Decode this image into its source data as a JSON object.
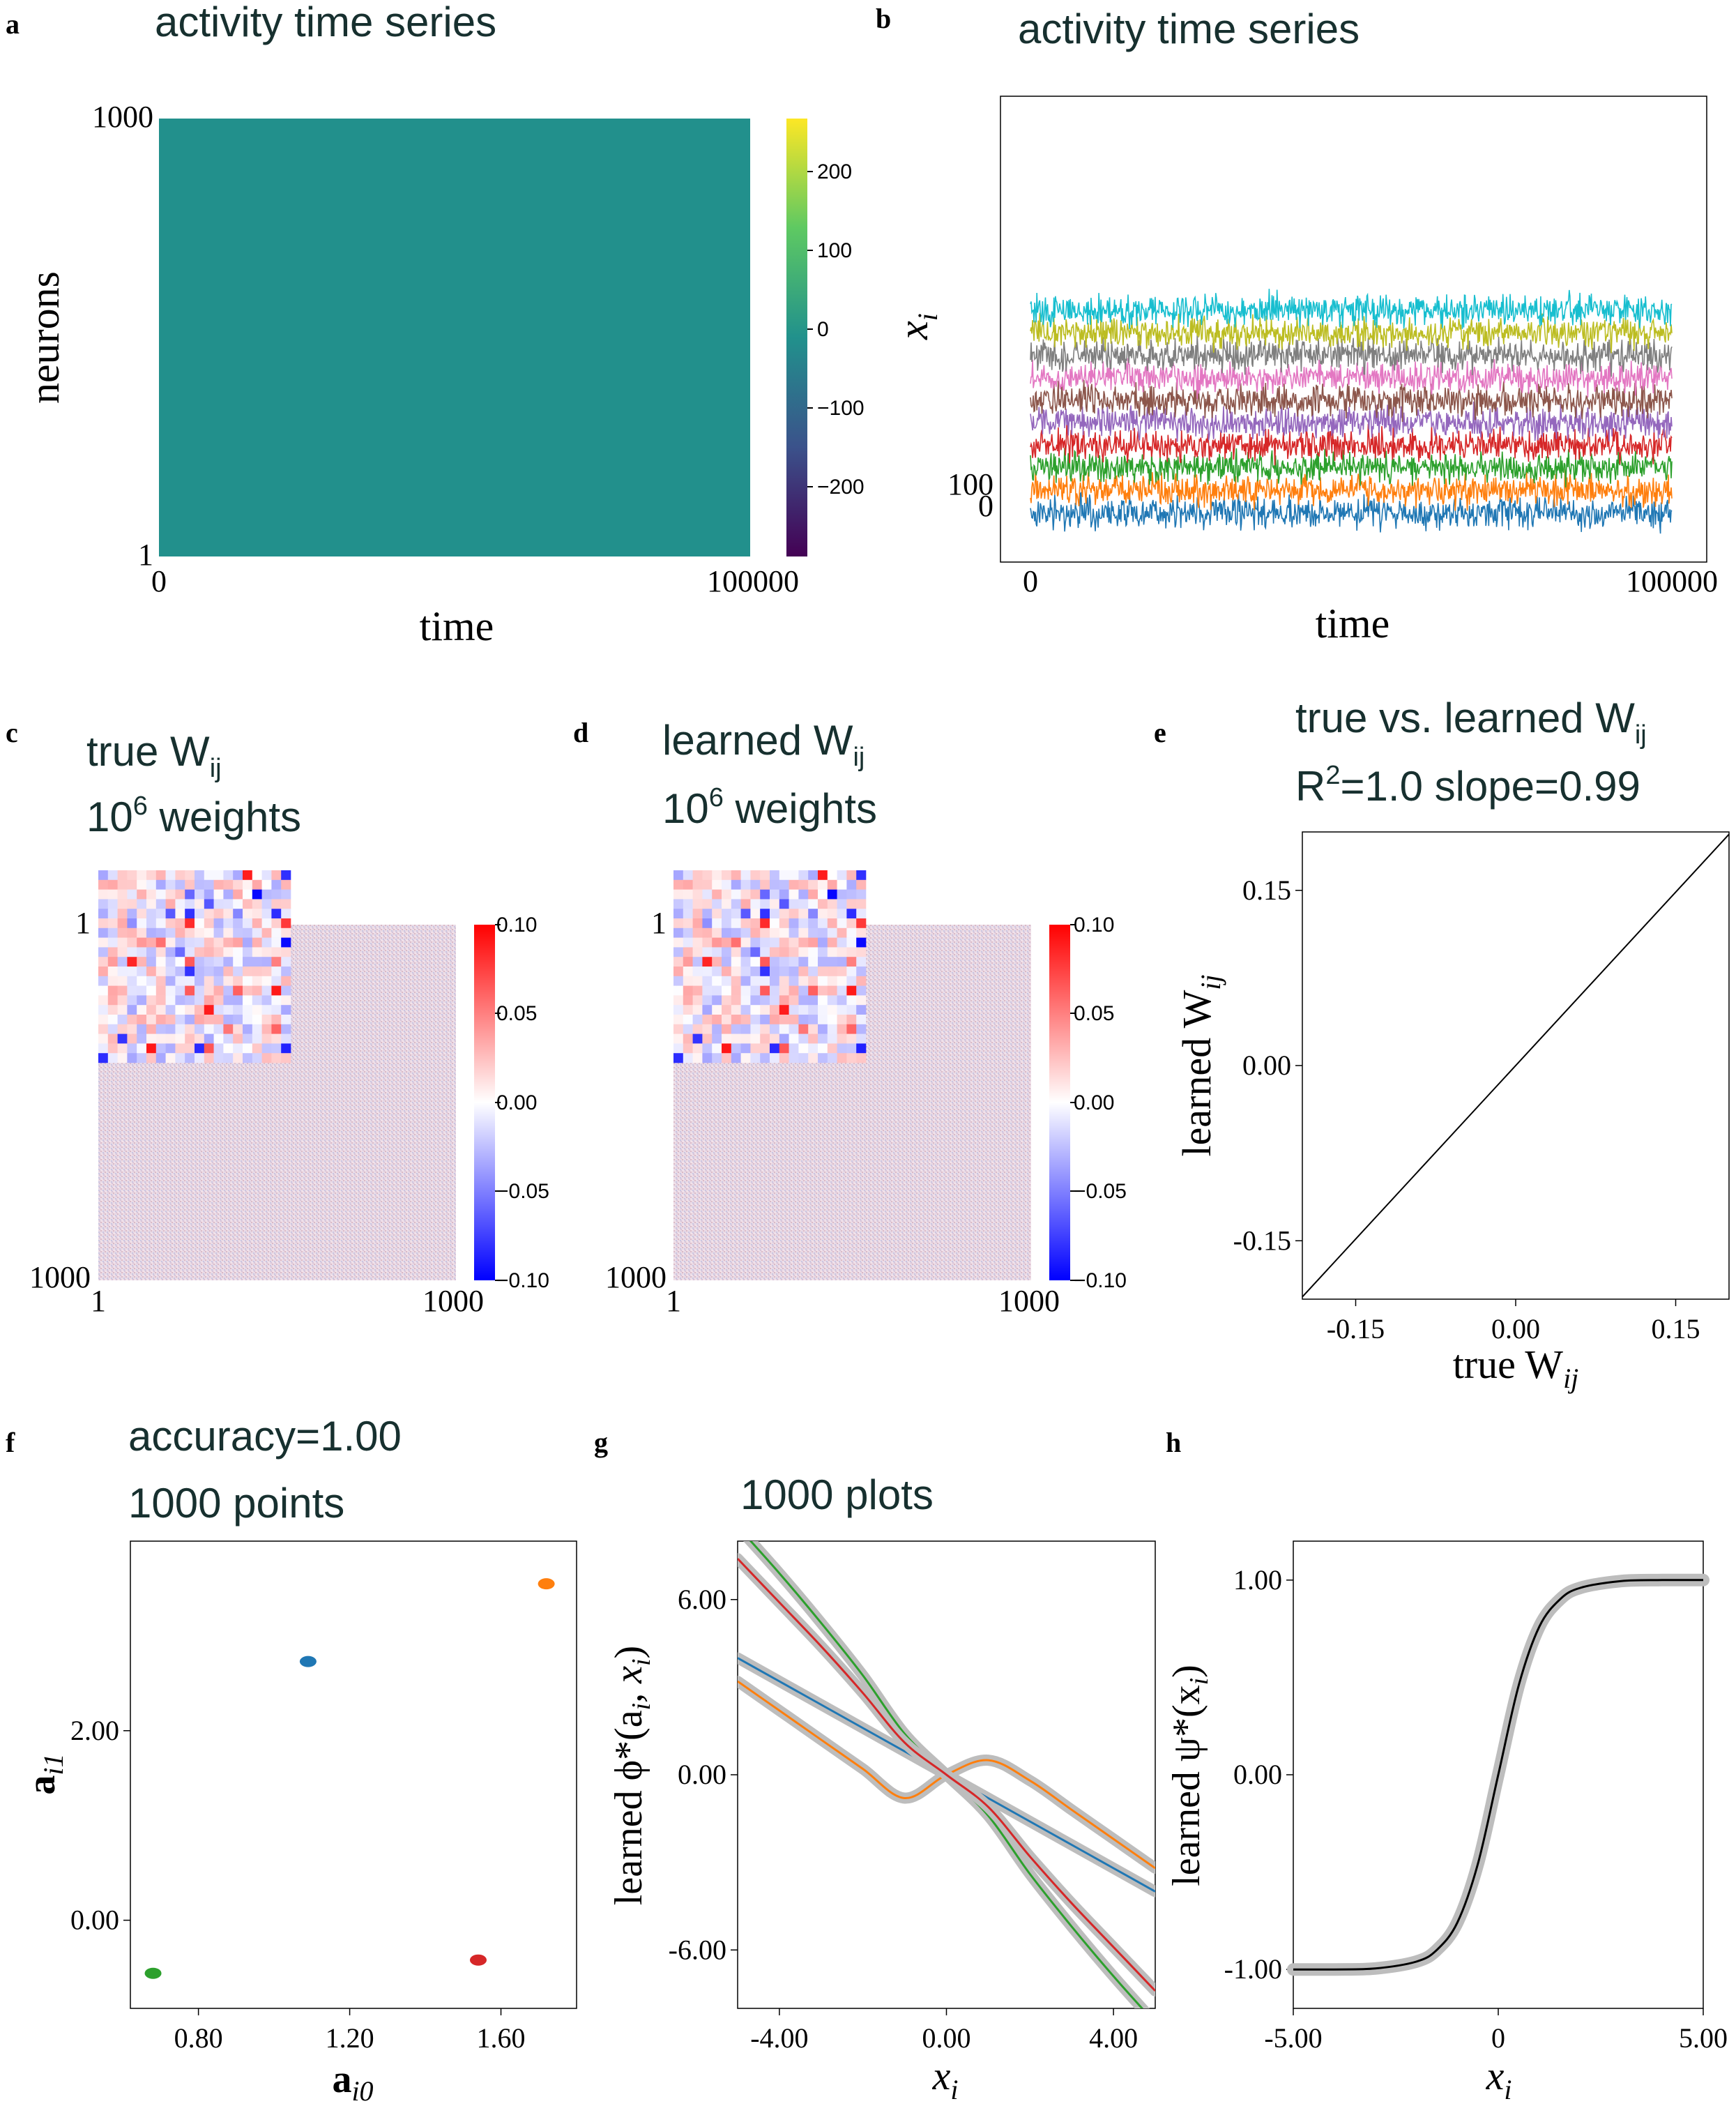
{
  "panel_letters": {
    "a": "a",
    "b": "b",
    "c": "c",
    "d": "d",
    "e": "e",
    "f": "f",
    "g": "g",
    "h": "h"
  },
  "chart_data": [
    {
      "id": "a",
      "type": "heatmap",
      "title": "activity time series",
      "xlabel": "time",
      "ylabel": "neurons",
      "xticks": [
        "0",
        "100000"
      ],
      "yticks": [
        "1000",
        "1"
      ],
      "colorbar": {
        "ticks": [
          "200",
          "100",
          "0",
          "−100",
          "−200"
        ],
        "range": [
          -280,
          270
        ],
        "colormap": "viridis"
      },
      "fill_color": "#22908c"
    },
    {
      "id": "b",
      "type": "line",
      "title": "activity time series",
      "xlabel": "time",
      "ylabel": "x",
      "ylabel_sub": "i",
      "xticks": [
        "0",
        "100000"
      ],
      "yticks": [
        "100",
        "0"
      ],
      "xlim": [
        0,
        100000
      ],
      "series_colors": [
        "#1f77b4",
        "#ff7f0e",
        "#2ca02c",
        "#d62728",
        "#9467bd",
        "#8c564b",
        "#e377c2",
        "#7f7f7f",
        "#bcbd22",
        "#17becf"
      ],
      "series_offsets": [
        0,
        100,
        200,
        300,
        400,
        500,
        600,
        700,
        800,
        900
      ]
    },
    {
      "id": "c",
      "type": "heatmap",
      "title_main": "true W",
      "title_sub": "ij",
      "subtitle_base": "10",
      "subtitle_exp": "6",
      "subtitle_rest": " weights",
      "xticks": [
        "1",
        "1000"
      ],
      "yticks": [
        "1",
        "1000"
      ],
      "colorbar": {
        "ticks": [
          "0.10",
          "0.05",
          "0.00",
          "−0.05",
          "−0.10"
        ],
        "range": [
          -0.1,
          0.1
        ],
        "colormap": "bwr"
      },
      "inset_size": 20
    },
    {
      "id": "d",
      "type": "heatmap",
      "title_main": "learned W",
      "title_sub": "ij",
      "subtitle_base": "10",
      "subtitle_exp": "6",
      "subtitle_rest": " weights",
      "xticks": [
        "1",
        "1000"
      ],
      "yticks": [
        "1",
        "1000"
      ],
      "colorbar": {
        "ticks": [
          "0.10",
          "0.05",
          "0.00",
          "−0.05",
          "−0.10"
        ],
        "range": [
          -0.1,
          0.1
        ],
        "colormap": "bwr"
      },
      "inset_size": 20
    },
    {
      "id": "e",
      "type": "scatter",
      "title_main": "true vs. learned W",
      "title_sub": "ij",
      "subtitle": "R",
      "subtitle_exp": "2",
      "subtitle_rest": "=1.0  slope=0.99",
      "xlabel": "true W",
      "xlabel_sub": "ij",
      "ylabel": "learned W",
      "ylabel_sub": "ij",
      "xlim": [
        -0.2,
        0.2
      ],
      "ylim": [
        -0.2,
        0.2
      ],
      "xticks": [
        -0.15,
        0.0,
        0.15
      ],
      "yticks": [
        -0.15,
        0.0,
        0.15
      ],
      "xtick_labels": [
        "-0.15",
        "0.00",
        "0.15"
      ],
      "ytick_labels": [
        "-0.15",
        "0.00",
        "0.15"
      ],
      "x": [
        -0.2,
        0.2
      ],
      "y": [
        -0.198,
        0.198
      ]
    },
    {
      "id": "f",
      "type": "scatter",
      "title": "accuracy=1.00",
      "subtitle": "1000 points",
      "xlabel": "a",
      "xlabel_sub": "i0",
      "ylabel": "a",
      "ylabel_sub": "i1",
      "xlim": [
        0.62,
        1.8
      ],
      "ylim": [
        -0.93,
        4.0
      ],
      "xticks": [
        0.8,
        1.2,
        1.6
      ],
      "yticks": [
        0.0,
        2.0
      ],
      "xtick_labels": [
        "0.80",
        "1.20",
        "1.60"
      ],
      "ytick_labels": [
        "0.00",
        "2.00"
      ],
      "points": [
        {
          "x": 1.09,
          "y": 2.73,
          "color": "#1f77b4"
        },
        {
          "x": 1.72,
          "y": 3.55,
          "color": "#ff7f0e"
        },
        {
          "x": 0.68,
          "y": -0.56,
          "color": "#2ca02c"
        },
        {
          "x": 1.54,
          "y": -0.42,
          "color": "#d62728"
        }
      ]
    },
    {
      "id": "g",
      "type": "line",
      "title": "1000 plots",
      "xlabel": "x",
      "xlabel_sub": "i",
      "ylabel": "learned ϕ*(a",
      "ylabel_sub1": "i",
      "ylabel_mid": ", x",
      "ylabel_sub2": "i",
      "ylabel_end": ")",
      "xlim": [
        -5,
        5
      ],
      "ylim": [
        -8,
        8
      ],
      "xticks": [
        -4,
        0,
        4
      ],
      "yticks": [
        -6,
        0,
        6
      ],
      "xtick_labels": [
        "-4.00",
        "0.00",
        "4.00"
      ],
      "ytick_labels": [
        "-6.00",
        "0.00",
        "6.00"
      ],
      "series": [
        {
          "color": "#1f77b4",
          "x": [
            -5,
            -4,
            -3,
            -2,
            -1,
            0,
            1,
            2,
            3,
            4,
            5
          ],
          "y": [
            4.0,
            3.2,
            2.4,
            1.6,
            0.8,
            0.0,
            -0.8,
            -1.6,
            -2.4,
            -3.2,
            -4.0
          ]
        },
        {
          "color": "#ff7f0e",
          "x": [
            -5,
            -4,
            -3,
            -2,
            -1,
            0,
            1,
            2,
            3,
            4,
            5
          ],
          "y": [
            3.2,
            2.2,
            1.2,
            0.2,
            -0.8,
            0.0,
            0.5,
            -0.2,
            -1.2,
            -2.2,
            -3.2
          ]
        },
        {
          "color": "#2ca02c",
          "x": [
            -5,
            -4,
            -3,
            -2,
            -1,
            0,
            1,
            2,
            3,
            4,
            5
          ],
          "y": [
            8.5,
            6.9,
            5.2,
            3.4,
            1.4,
            0.0,
            -1.4,
            -3.4,
            -5.2,
            -6.9,
            -8.5
          ]
        },
        {
          "color": "#d62728",
          "x": [
            -5,
            -4,
            -3,
            -2,
            -1,
            0,
            1,
            2,
            3,
            4,
            5
          ],
          "y": [
            7.4,
            5.9,
            4.4,
            2.8,
            1.1,
            0.0,
            -1.1,
            -2.8,
            -4.4,
            -5.9,
            -7.4
          ]
        }
      ]
    },
    {
      "id": "h",
      "type": "line",
      "xlabel": "x",
      "xlabel_sub": "i",
      "ylabel": "learned ψ*(x",
      "ylabel_sub": "i",
      "ylabel_end": ")",
      "xlim": [
        -5,
        5
      ],
      "ylim": [
        -1.2,
        1.2
      ],
      "xticks": [
        -5,
        0,
        5
      ],
      "yticks": [
        -1,
        0,
        1
      ],
      "xtick_labels": [
        "-5.00",
        "0",
        "5.00"
      ],
      "ytick_labels": [
        "-1.00",
        "0.00",
        "1.00"
      ],
      "series": [
        {
          "color": "#000000",
          "x": [
            -5,
            -4,
            -3,
            -2,
            -1.5,
            -1,
            -0.5,
            0,
            0.5,
            1,
            1.5,
            2,
            3,
            4,
            5
          ],
          "y": [
            -1.0,
            -1.0,
            -0.995,
            -0.96,
            -0.9,
            -0.76,
            -0.46,
            0.0,
            0.46,
            0.76,
            0.9,
            0.96,
            0.995,
            1.0,
            1.0
          ]
        }
      ]
    }
  ]
}
